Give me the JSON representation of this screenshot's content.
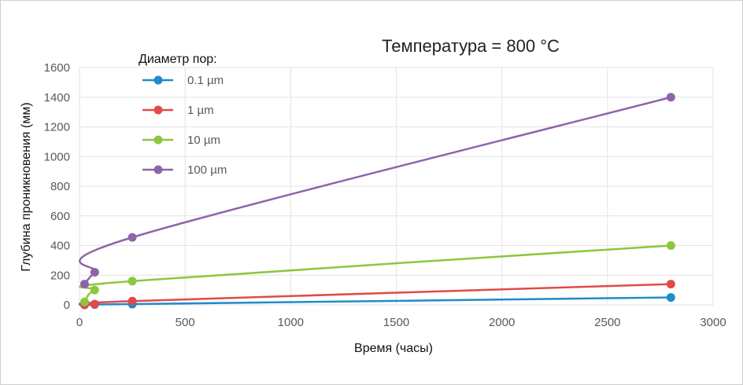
{
  "chart_data": {
    "type": "line",
    "title": "Температура = 800 °C",
    "xlabel": "Время (часы)",
    "ylabel": "Глубина проникновения (мм)",
    "legend_title": "Диаметр пор:",
    "legend_position": "top-left",
    "xlim": [
      0,
      3000
    ],
    "ylim": [
      0,
      1600
    ],
    "xticks": [
      0,
      500,
      1000,
      1500,
      2000,
      2500,
      3000
    ],
    "yticks": [
      0,
      200,
      400,
      600,
      800,
      1000,
      1200,
      1400,
      1600
    ],
    "grid": true,
    "x": [
      24,
      72,
      250,
      2800
    ],
    "series": [
      {
        "name": "0.1 µm",
        "color": "#1f8bc9",
        "values": [
          0,
          2,
          5,
          50
        ]
      },
      {
        "name": " 1 µm",
        "color": "#e04a4a",
        "values": [
          0,
          5,
          25,
          140
        ]
      },
      {
        "name": "10 µm",
        "color": "#8dc63f",
        "values": [
          20,
          100,
          160,
          400
        ]
      },
      {
        "name": "100 µm",
        "color": "#8e64a8",
        "values": [
          140,
          220,
          455,
          1400
        ]
      }
    ]
  }
}
